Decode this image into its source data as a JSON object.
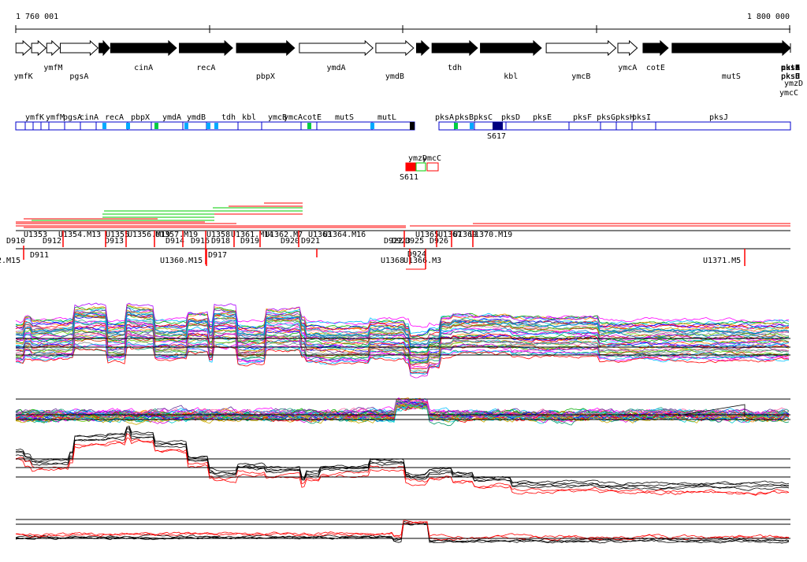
{
  "coordinates": {
    "start_label": "1 760 001",
    "end_label": "1 800 000",
    "start": 1760001,
    "end": 1800000
  },
  "genes": [
    {
      "name": "ymfK",
      "start": 1760010,
      "end": 1760780,
      "strand": "+",
      "style": "outline"
    },
    {
      "name": "",
      "start": 1760820,
      "end": 1761560,
      "strand": "+",
      "style": "outline"
    },
    {
      "name": "ymfM",
      "start": 1761600,
      "end": 1762260,
      "strand": "+",
      "style": "outline"
    },
    {
      "name": "pgsA",
      "start": 1762300,
      "end": 1764250,
      "strand": "+",
      "style": "outline"
    },
    {
      "name": "",
      "start": 1764300,
      "end": 1764850,
      "strand": "+",
      "style": "solid"
    },
    {
      "name": "cinA",
      "start": 1764900,
      "end": 1768300,
      "strand": "+",
      "style": "solid"
    },
    {
      "name": "recA",
      "start": 1768450,
      "end": 1771200,
      "strand": "+",
      "style": "solid"
    },
    {
      "name": "pbpX",
      "start": 1771400,
      "end": 1774400,
      "strand": "+",
      "style": "solid"
    },
    {
      "name": "ymdA",
      "start": 1774650,
      "end": 1778450,
      "strand": "+",
      "style": "outline"
    },
    {
      "name": "ymdB",
      "start": 1778600,
      "end": 1780550,
      "strand": "+",
      "style": "outline"
    },
    {
      "name": "",
      "start": 1780700,
      "end": 1781350,
      "strand": "+",
      "style": "solid"
    },
    {
      "name": "tdh",
      "start": 1781500,
      "end": 1783850,
      "strand": "+",
      "style": "solid"
    },
    {
      "name": "kbl",
      "start": 1784000,
      "end": 1787150,
      "strand": "+",
      "style": "solid"
    },
    {
      "name": "ymcB",
      "start": 1787400,
      "end": 1791000,
      "strand": "+",
      "style": "outline"
    },
    {
      "name": "ymcA",
      "start": 1791100,
      "end": 1792100,
      "strand": "+",
      "style": "outline"
    },
    {
      "name": "cotE",
      "start": 1792400,
      "end": 1793700,
      "strand": "+",
      "style": "solid"
    },
    {
      "name": "mutS",
      "start": 1793900,
      "end": 1802000,
      "strand": "+",
      "style": "solid"
    },
    {
      "name": "mutL",
      "start": 1802100,
      "end": 1806150,
      "strand": "+",
      "style": "solid"
    },
    {
      "name": "ymzD",
      "start": 1807300,
      "end": 1808150,
      "strand": "-",
      "style": "outline"
    },
    {
      "name": "ymcC",
      "start": 1808200,
      "end": 1809400,
      "strand": "-",
      "style": "outline"
    },
    {
      "name": "pksA",
      "start": 1810250,
      "end": 1811700,
      "strand": "+",
      "style": "outline"
    },
    {
      "name": "pksB",
      "start": 1811800,
      "end": 1813300,
      "strand": "+",
      "style": "outline"
    },
    {
      "name": "pksC",
      "start": 1814100,
      "end": 1815800,
      "strand": "+",
      "style": "solid"
    },
    {
      "name": "pksD",
      "start": 1817200,
      "end": 1819350,
      "strand": "+",
      "style": "solid"
    },
    {
      "name": "pksE",
      "start": 1819500,
      "end": 1825150,
      "strand": "+",
      "style": "solid"
    },
    {
      "name": "pksF",
      "start": 1825350,
      "end": 1827800,
      "strand": "+",
      "style": "solid"
    },
    {
      "name": "pksG",
      "start": 1827950,
      "end": 1829500,
      "strand": "+",
      "style": "solid"
    },
    {
      "name": "pksH",
      "start": 1829600,
      "end": 1831550,
      "strand": "+",
      "style": "solid"
    },
    {
      "name": "pksI",
      "start": 1831700,
      "end": 1833550,
      "strand": "+",
      "style": "solid"
    },
    {
      "name": "pksJ",
      "start": 1833700,
      "end": 1855000,
      "strand": "+",
      "style": "solid"
    }
  ],
  "operon_track": {
    "labels": [
      "ymfK",
      "ymfM",
      "pgsA",
      "cinA",
      "recA",
      "pbpX",
      "ymdA",
      "ymdB",
      "tdh",
      "kbl",
      "ymcB",
      "ymcA",
      "cotE",
      "mutS",
      "mutL",
      "pksA",
      "pksB",
      "pksC",
      "pksD",
      "pksE",
      "pksF",
      "pksG",
      "pksH",
      "pksI",
      "pksJ"
    ],
    "site_labels": [
      "S617"
    ],
    "lower_labels": [
      "ymzD",
      "ymcC"
    ],
    "lower_site_labels": [
      "S611"
    ]
  },
  "transcription_labels": [
    "D910",
    "U1353",
    "D912",
    "U1354.M13",
    "U1355",
    "D913",
    "U1356.M19",
    "U1357.M19",
    "D914",
    "D916",
    "U1358",
    "D918",
    "U1361.M14",
    "D919",
    "U1362.M7",
    "D920",
    "D921",
    "U1363",
    "U1364.M16",
    "D922",
    "D923",
    "D924",
    "U1365",
    "D925",
    "U1367",
    "U1369",
    "D926",
    "U1370.M19",
    "D911",
    "2.M15",
    "U1360.M15",
    "D917",
    "U1368",
    "U1366.M3",
    "U1371.M5"
  ],
  "colors": {
    "gene_fill": "#000000",
    "operon_border": "#0000cc",
    "operon_marker_cyan": "#00aaff",
    "operon_marker_green": "#00cc44",
    "operon_marker_navy": "#000080",
    "feature_red": "#ff0000",
    "feature_green": "#00cc00",
    "expression_ref": "#000000",
    "expression_red": "#ff0000"
  },
  "tracks": [
    "expression-multi-condition",
    "expression-multi-condition-detail",
    "expression-summary",
    "expression-summary-detail"
  ]
}
